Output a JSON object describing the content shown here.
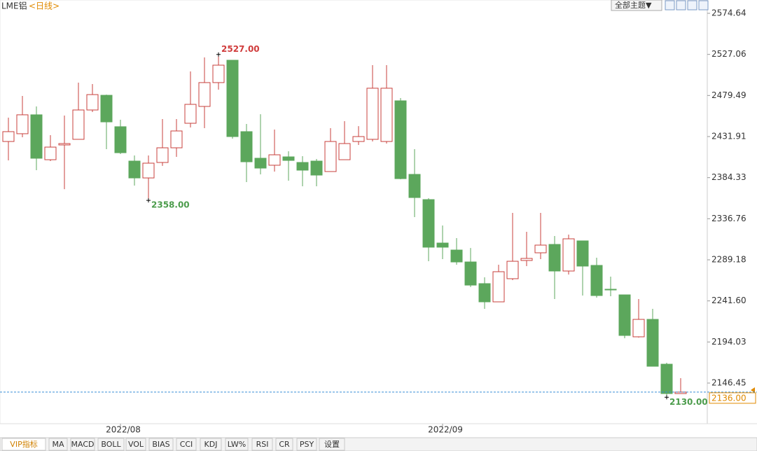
{
  "header": {
    "title": "LME铝",
    "period": "<日线>",
    "theme_button": "全部主题▼"
  },
  "toolbar": {
    "tabs": [
      "VIP指标",
      "MA",
      "MACD",
      "BOLL",
      "VOL",
      "BIAS",
      "CCI",
      "KDJ",
      "LW%",
      "RSI",
      "CR",
      "PSY",
      "设置"
    ]
  },
  "chart_data": {
    "type": "candlestick",
    "up_color": "#c8403c",
    "down_color": "#5ca75c",
    "ylim": [
      2099.4,
      2590.05
    ],
    "yticks": [
      2574.64,
      2527.06,
      2479.49,
      2431.91,
      2384.33,
      2336.76,
      2289.18,
      {
        "value": 2241.6,
        "label": "2241.60"
      },
      2194.03,
      2146.45
    ],
    "xticks": [
      {
        "value": 8,
        "label": "2022/08"
      },
      {
        "value": 31,
        "label": "2022/09"
      }
    ],
    "open": [
      2426.2,
      2435.2,
      2457.1,
      2405.1,
      2422.2,
      2428.7,
      2462.7,
      2479.7,
      2443.3,
      2403.5,
      2384.0,
      2401.9,
      2418.9,
      2447.3,
      2466.8,
      2494.4,
      2520.3,
      2437.6,
      2406.8,
      2398.7,
      2408.4,
      2401.9,
      2403.5,
      2391.4,
      2405.1,
      2426.2,
      2428.7,
      2426.2,
      2473.3,
      2388.1,
      2358.9,
      2308.6,
      2300.5,
      2286.7,
      2261.6,
      2240.5,
      2267.3,
      2288.4,
      2297.3,
      2307.0,
      2276.2,
      2311.1,
      2282.7,
      2255.1,
      2248.6,
      2200.0,
      2220.2,
      2168.3,
      2134.3
    ],
    "high": [
      2453.8,
      2478.9,
      2466.8,
      2433.5,
      2456.2,
      2494.4,
      2492.7,
      2480.5,
      2451.4,
      2410.0,
      2410.0,
      2452.2,
      2452.2,
      2507.3,
      2523.5,
      2527,
      2520.3,
      2446.5,
      2457.8,
      2440.0,
      2414.9,
      2409.2,
      2406.0,
      2441.6,
      2449.7,
      2444.0,
      2514.6,
      2514.6,
      2476.5,
      2417.3,
      2360.5,
      2328.9,
      2314.3,
      2302.9,
      2268.9,
      2283.5,
      2343.5,
      2321.6,
      2343.5,
      2316.7,
      2318.4,
      2311.1,
      2291.6,
      2269.7,
      2248.6,
      2243.8,
      2232.4,
      2170.0,
      2152.1
    ],
    "low": [
      2404.3,
      2431.1,
      2393.0,
      2403.5,
      2371.0,
      2428.7,
      2460.3,
      2417.3,
      2411.6,
      2375.1,
      2358,
      2397.9,
      2408.4,
      2442.4,
      2441.6,
      2486.2,
      2429.5,
      2379.2,
      2388.1,
      2391.4,
      2380.8,
      2374.3,
      2374.3,
      2391.4,
      2405.1,
      2422.2,
      2426.2,
      2423.8,
      2382.4,
      2338.6,
      2287.5,
      2290.0,
      2283.5,
      2257.6,
      2232.4,
      2240.5,
      2265.7,
      2281.9,
      2290.0,
      2243.8,
      2272.1,
      2247.8,
      2245.4,
      2247.0,
      2198.3,
      2199.2,
      2165.9,
      2130,
      2134.3
    ],
    "close": [
      2437.6,
      2457.1,
      2406.8,
      2419.7,
      2423.8,
      2462.7,
      2480.5,
      2448.9,
      2413.2,
      2384.0,
      2401.1,
      2418.9,
      2438.4,
      2469.2,
      2494.4,
      2514.6,
      2431.9,
      2402.7,
      2395.4,
      2410.8,
      2404.3,
      2393.0,
      2387.3,
      2426.2,
      2423.8,
      2431.9,
      2487.9,
      2487.9,
      2383.2,
      2361.3,
      2303.8,
      2303.8,
      2286.7,
      2259.9,
      2240.5,
      2275.4,
      2287.5,
      2290.8,
      2306.2,
      2276.2,
      2313.5,
      2281.9,
      2247.8,
      2254.3,
      2201.6,
      2220.2,
      2165.9,
      2134.3,
      2136
    ],
    "annotations": [
      {
        "index": 15,
        "value": 2527,
        "label": "2527.00",
        "color": "#d03c3c"
      },
      {
        "index": 10,
        "value": 2358,
        "label": "2358.00",
        "color": "#4c9c4c"
      },
      {
        "index": 47,
        "value": 2130,
        "label": "2130.00",
        "color": "#4c9c4c"
      }
    ],
    "last_price": {
      "value": 2136,
      "label": "2136.00",
      "color": "#e08a00",
      "line_color": "#3a8fd6"
    }
  }
}
